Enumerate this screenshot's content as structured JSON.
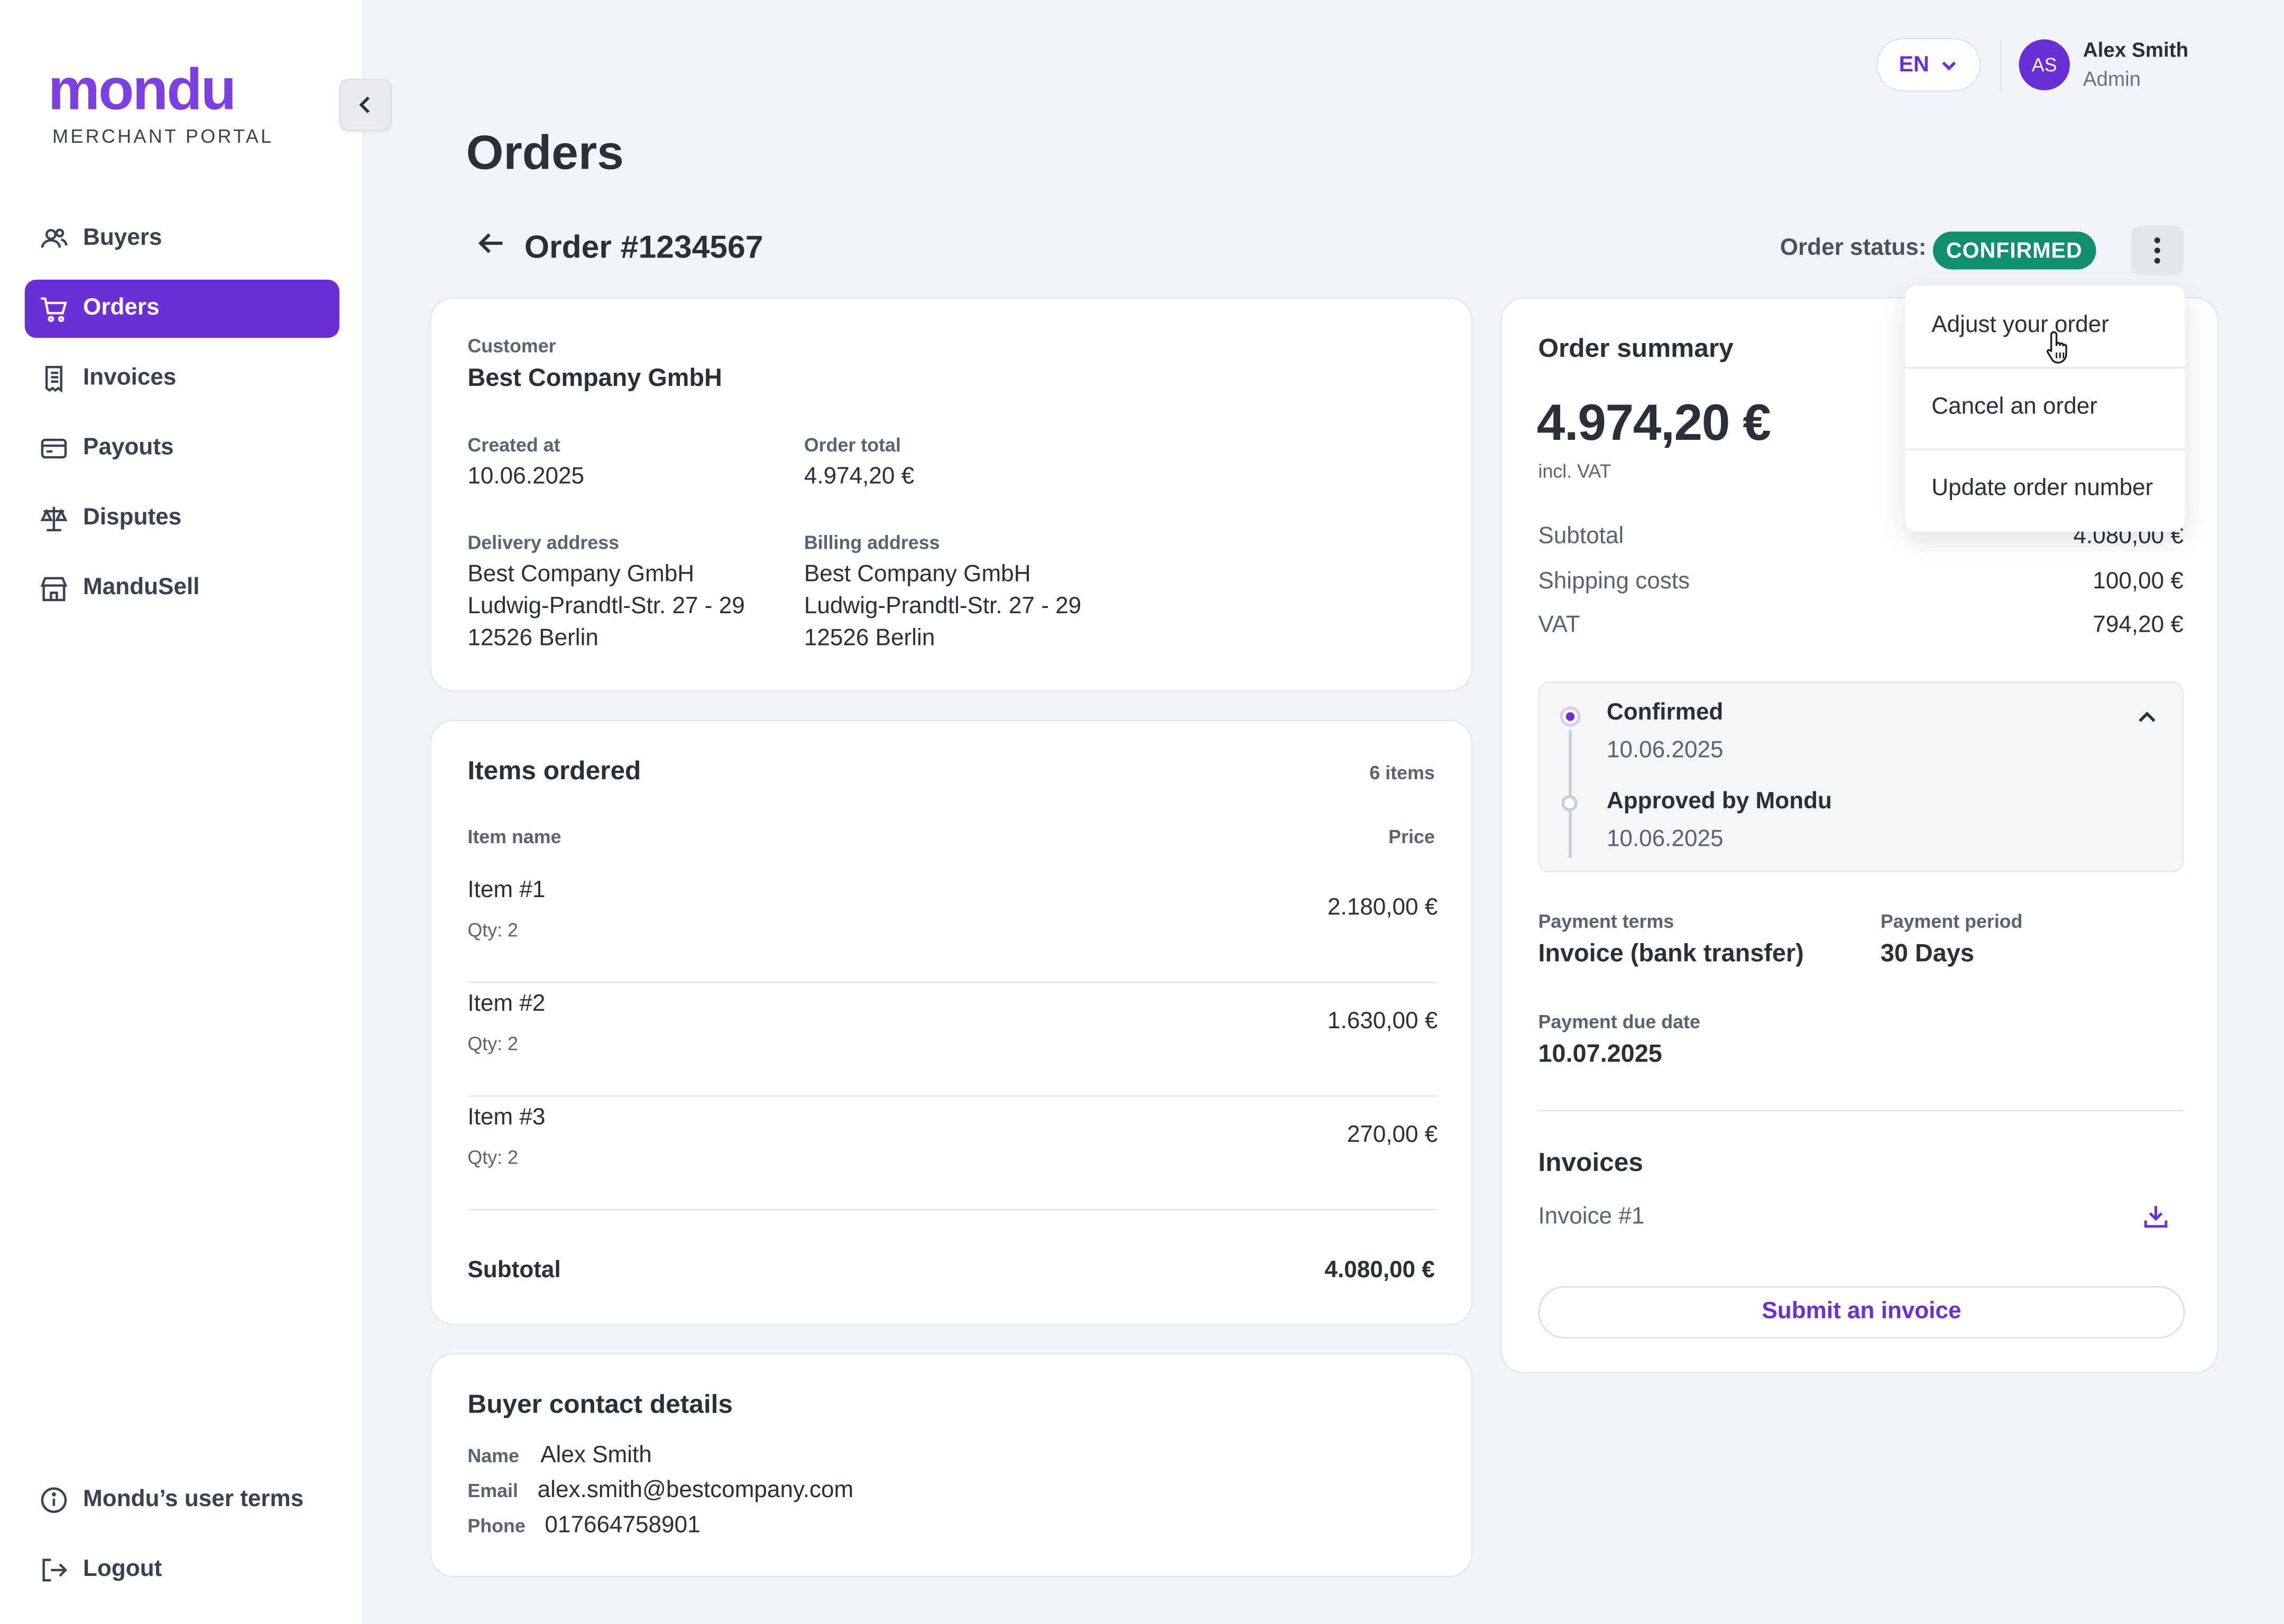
{
  "brand": {
    "logo_text": "mondu",
    "logo_sub": "MERCHANT PORTAL",
    "accent": "#6b2fd6",
    "success": "#0f8f6e"
  },
  "sidebar": {
    "items": [
      {
        "label": "Buyers",
        "icon": "users-icon",
        "active": false
      },
      {
        "label": "Orders",
        "icon": "cart-icon",
        "active": true
      },
      {
        "label": "Invoices",
        "icon": "receipt-icon",
        "active": false
      },
      {
        "label": "Payouts",
        "icon": "wallet-icon",
        "active": false
      },
      {
        "label": "Disputes",
        "icon": "scale-icon",
        "active": false
      },
      {
        "label": "ManduSell",
        "icon": "store-icon",
        "active": false
      }
    ],
    "bottom": [
      {
        "label": "Mondu’s user terms",
        "icon": "info-icon"
      },
      {
        "label": "Logout",
        "icon": "logout-icon"
      }
    ]
  },
  "header": {
    "language": "EN",
    "user": {
      "initials": "AS",
      "name": "Alex Smith",
      "role": "Admin"
    }
  },
  "page": {
    "title": "Orders"
  },
  "order": {
    "title": "Order #1234567",
    "status_label": "Order status:",
    "status": "CONFIRMED"
  },
  "customer_card": {
    "customer_label": "Customer",
    "customer_name": "Best Company GmbH",
    "created_label": "Created at",
    "created_value": "10.06.2025",
    "total_label": "Order total",
    "total_value": "4.974,20 €",
    "delivery_label": "Delivery address",
    "delivery_lines": [
      "Best Company GmbH",
      "Ludwig-Prandtl-Str. 27 - 29",
      "12526 Berlin"
    ],
    "billing_label": "Billing address",
    "billing_lines": [
      "Best Company GmbH",
      "Ludwig-Prandtl-Str. 27 - 29",
      "12526 Berlin"
    ]
  },
  "items_card": {
    "title": "Items ordered",
    "count": "6 items",
    "col_name": "Item name",
    "col_price": "Price",
    "items": [
      {
        "name": "Item #1",
        "qty": "Qty: 2",
        "price": "2.180,00 €"
      },
      {
        "name": "Item #2",
        "qty": "Qty: 2",
        "price": "1.630,00 €"
      },
      {
        "name": "Item #3",
        "qty": "Qty: 2",
        "price": "270,00 €"
      }
    ],
    "subtotal_label": "Subtotal",
    "subtotal_value": "4.080,00 €"
  },
  "contact_card": {
    "title": "Buyer contact details",
    "name_label": "Name",
    "name_value": "Alex Smith",
    "email_label": "Email",
    "email_value": "alex.smith@bestcompany.com",
    "phone_label": "Phone",
    "phone_value": "017664758901"
  },
  "summary": {
    "title": "Order summary",
    "total": "4.974,20 €",
    "vat_note": "incl. VAT",
    "rows": [
      {
        "label": "Subtotal",
        "value": "4.080,00 €"
      },
      {
        "label": "Shipping costs",
        "value": "100,00 €"
      },
      {
        "label": "VAT",
        "value": "794,20 €"
      }
    ],
    "timeline": [
      {
        "label": "Confirmed",
        "date": "10.06.2025"
      },
      {
        "label": "Approved by Mondu",
        "date": "10.06.2025"
      }
    ],
    "payment_terms_label": "Payment terms",
    "payment_terms_value": "Invoice (bank transfer)",
    "payment_period_label": "Payment period",
    "payment_period_value": "30 Days",
    "due_label": "Payment due date",
    "due_value": "10.07.2025",
    "invoices_title": "Invoices",
    "invoice_item": "Invoice #1",
    "submit_label": "Submit an invoice"
  },
  "actions_menu": {
    "items": [
      "Adjust your order",
      "Cancel an order",
      "Update order number"
    ]
  }
}
